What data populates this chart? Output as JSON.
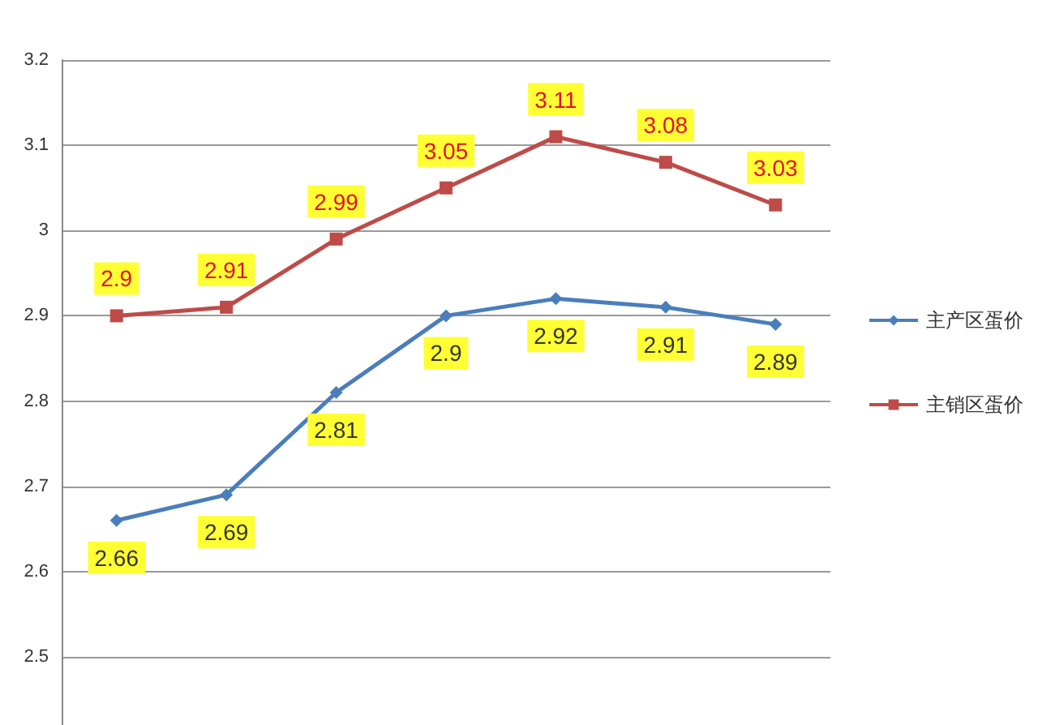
{
  "chart_data": {
    "type": "line",
    "categories": [
      null,
      null,
      null,
      null,
      null,
      null,
      null
    ],
    "series": [
      {
        "name": "主产区蛋价",
        "color": "#4a7ebb",
        "marker": "diamond",
        "values": [
          2.66,
          2.69,
          2.81,
          2.9,
          2.92,
          2.91,
          2.89
        ]
      },
      {
        "name": "主销区蛋价",
        "color": "#be4b48",
        "marker": "square",
        "values": [
          2.9,
          2.91,
          2.99,
          3.05,
          3.11,
          3.08,
          3.03
        ]
      }
    ],
    "ylim": [
      2.42,
      3.2
    ],
    "yticks": [
      2.5,
      2.6,
      2.7,
      2.8,
      2.9,
      3,
      3.1,
      3.2
    ],
    "grid": "y",
    "legend": "right",
    "tick_labels": "y",
    "data_labels": true
  }
}
